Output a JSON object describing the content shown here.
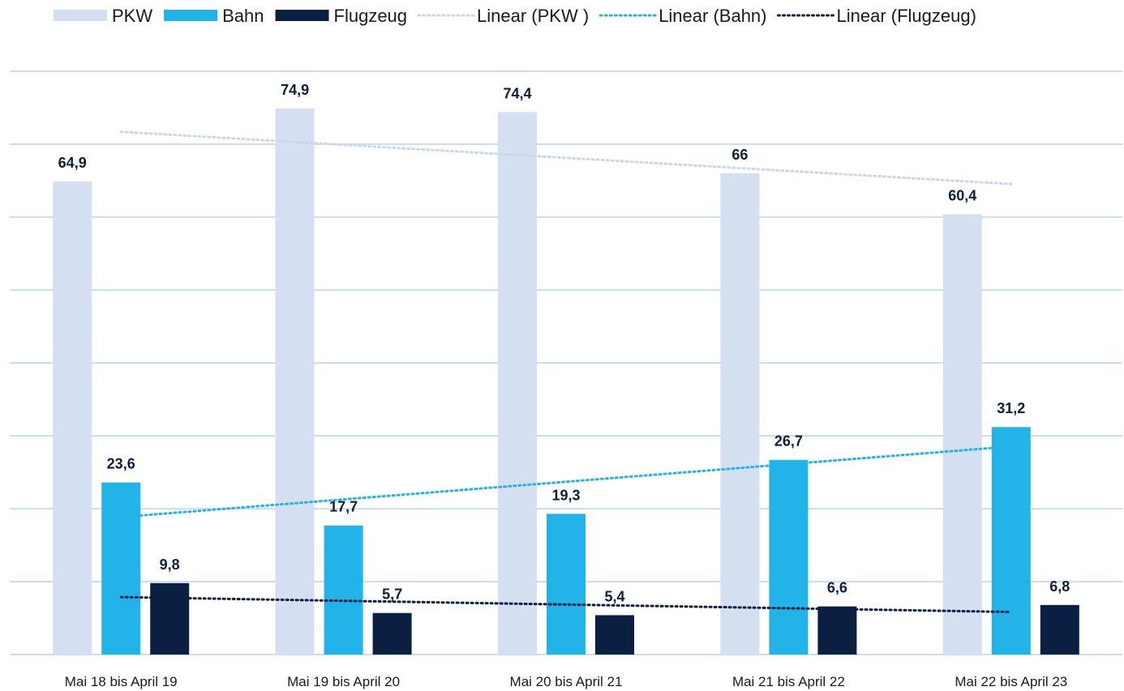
{
  "chart_data": {
    "type": "bar",
    "categories": [
      "Mai 18 bis April 19",
      "Mai 19 bis April 20",
      "Mai 20 bis April 21",
      "Mai 21 bis April 22",
      "Mai 22 bis April 23"
    ],
    "series": [
      {
        "name": "PKW",
        "color": "#d5dff2",
        "values": [
          64.9,
          74.9,
          74.4,
          66,
          60.4
        ],
        "labels": [
          "64,9",
          "74,9",
          "74,4",
          "66",
          "60,4"
        ]
      },
      {
        "name": "Bahn",
        "color": "#22b4e8",
        "values": [
          23.6,
          17.7,
          19.3,
          26.7,
          31.2
        ],
        "labels": [
          "23,6",
          "17,7",
          "19,3",
          "26,7",
          "31,2"
        ]
      },
      {
        "name": "Flugzeug",
        "color": "#0b1f42",
        "values": [
          9.8,
          5.7,
          5.4,
          6.6,
          6.8
        ],
        "labels": [
          "9,8",
          "5,7",
          "5,4",
          "6,6",
          "6,8"
        ]
      }
    ],
    "trendlines": [
      {
        "name": "Linear (PKW )",
        "color": "#c9d6ec",
        "series": "PKW"
      },
      {
        "name": "Linear (Bahn)",
        "color": "#22b4e8",
        "series": "Bahn"
      },
      {
        "name": "Linear (Flugzeug)",
        "color": "#0b1f42",
        "series": "Flugzeug"
      }
    ],
    "ylim": [
      0,
      80
    ],
    "gridline_step": 10,
    "grid": true,
    "legend": "top",
    "gridline_color": "#c9dff5"
  }
}
